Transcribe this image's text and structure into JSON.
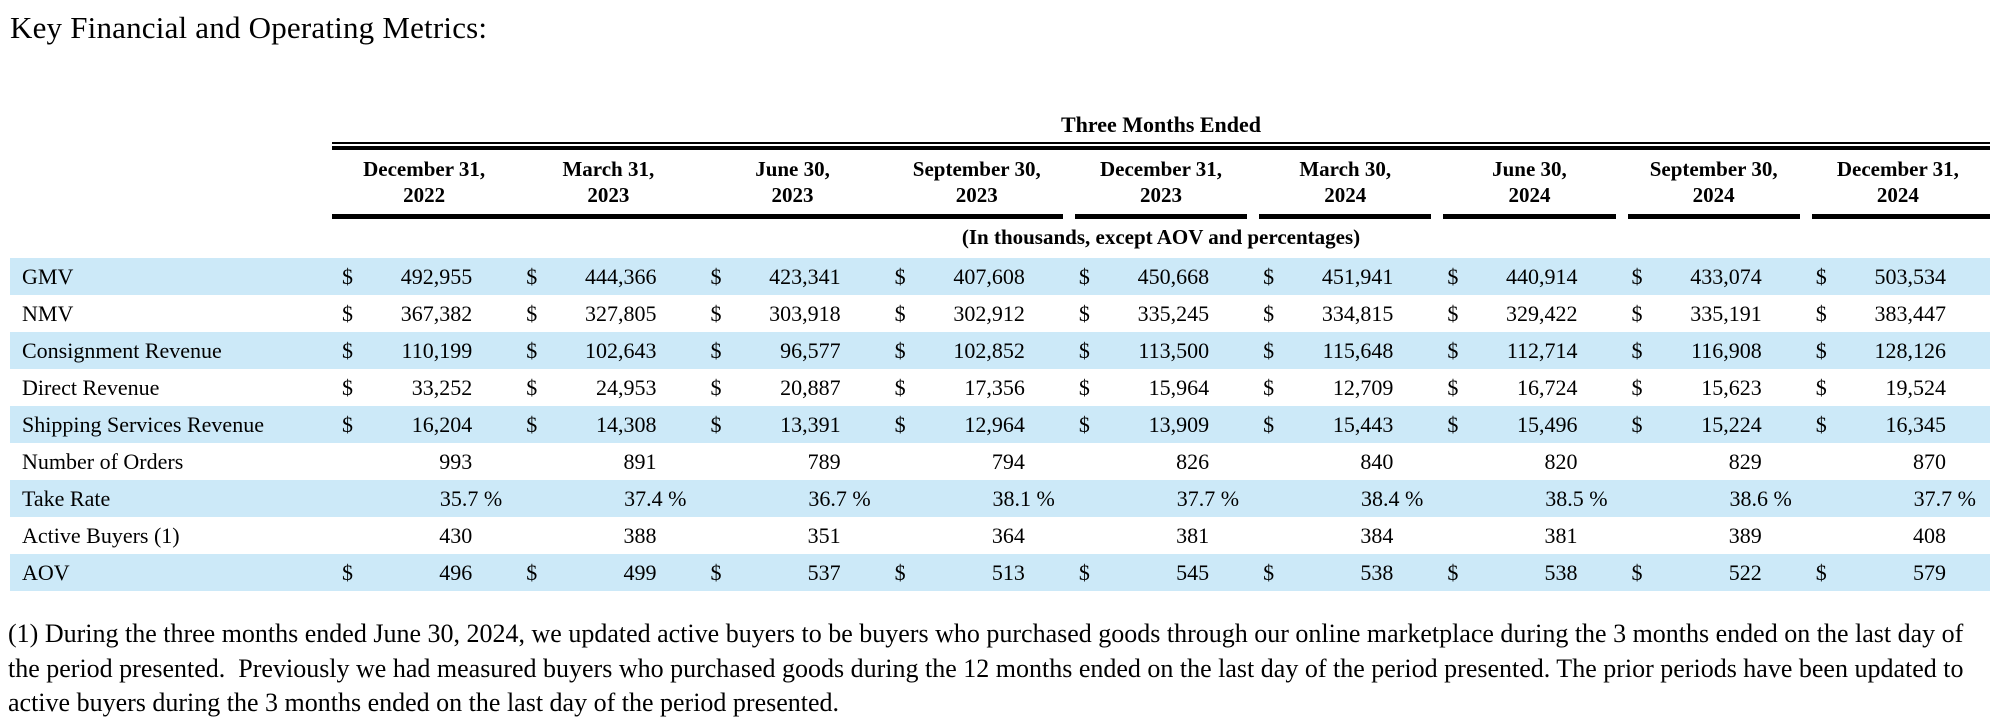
{
  "page_title": "Key Financial and Operating Metrics:",
  "table": {
    "span_header": "Three Months Ended",
    "units_note": "(In thousands, except AOV and percentages)",
    "currency_symbol": "$",
    "percent_symbol": "%",
    "columns": [
      "December 31,\n2022",
      "March 31,\n2023",
      "June 30,\n2023",
      "September 30,\n2023",
      "December 31,\n2023",
      "March 30,\n2024",
      "June 30,\n2024",
      "September 30,\n2024",
      "December 31,\n2024"
    ],
    "rows": [
      {
        "label": "GMV",
        "type": "money",
        "values": [
          "492,955",
          "444,366",
          "423,341",
          "407,608",
          "450,668",
          "451,941",
          "440,914",
          "433,074",
          "503,534"
        ]
      },
      {
        "label": "NMV",
        "type": "money",
        "values": [
          "367,382",
          "327,805",
          "303,918",
          "302,912",
          "335,245",
          "334,815",
          "329,422",
          "335,191",
          "383,447"
        ]
      },
      {
        "label": "Consignment Revenue",
        "type": "money",
        "values": [
          "110,199",
          "102,643",
          "96,577",
          "102,852",
          "113,500",
          "115,648",
          "112,714",
          "116,908",
          "128,126"
        ]
      },
      {
        "label": "Direct Revenue",
        "type": "money",
        "values": [
          "33,252",
          "24,953",
          "20,887",
          "17,356",
          "15,964",
          "12,709",
          "16,724",
          "15,623",
          "19,524"
        ]
      },
      {
        "label": "Shipping Services Revenue",
        "type": "money",
        "values": [
          "16,204",
          "14,308",
          "13,391",
          "12,964",
          "13,909",
          "15,443",
          "15,496",
          "15,224",
          "16,345"
        ]
      },
      {
        "label": "Number of Orders",
        "type": "number",
        "values": [
          "993",
          "891",
          "789",
          "794",
          "826",
          "840",
          "820",
          "829",
          "870"
        ]
      },
      {
        "label": "Take Rate",
        "type": "percent",
        "values": [
          "35.7",
          "37.4",
          "36.7",
          "38.1",
          "37.7",
          "38.4",
          "38.5",
          "38.6",
          "37.7"
        ]
      },
      {
        "label": "Active Buyers (1)",
        "type": "number",
        "values": [
          "430",
          "388",
          "351",
          "364",
          "381",
          "384",
          "381",
          "389",
          "408"
        ]
      },
      {
        "label": "AOV",
        "type": "money",
        "values": [
          "496",
          "499",
          "537",
          "513",
          "545",
          "538",
          "538",
          "522",
          "579"
        ]
      }
    ]
  },
  "footnote": "(1) During the three months ended June 30, 2024, we updated active buyers to be buyers who purchased goods through our online marketplace during the 3 months ended on the last day of the period presented.  Previously we had measured buyers who purchased goods during the 12 months ended on the last day of the period presented. The prior periods have been updated to active buyers during the 3 months ended on the last day of the period presented.",
  "colors": {
    "stripe": "#cce9f8",
    "text": "#000000",
    "rule": "#000000"
  }
}
